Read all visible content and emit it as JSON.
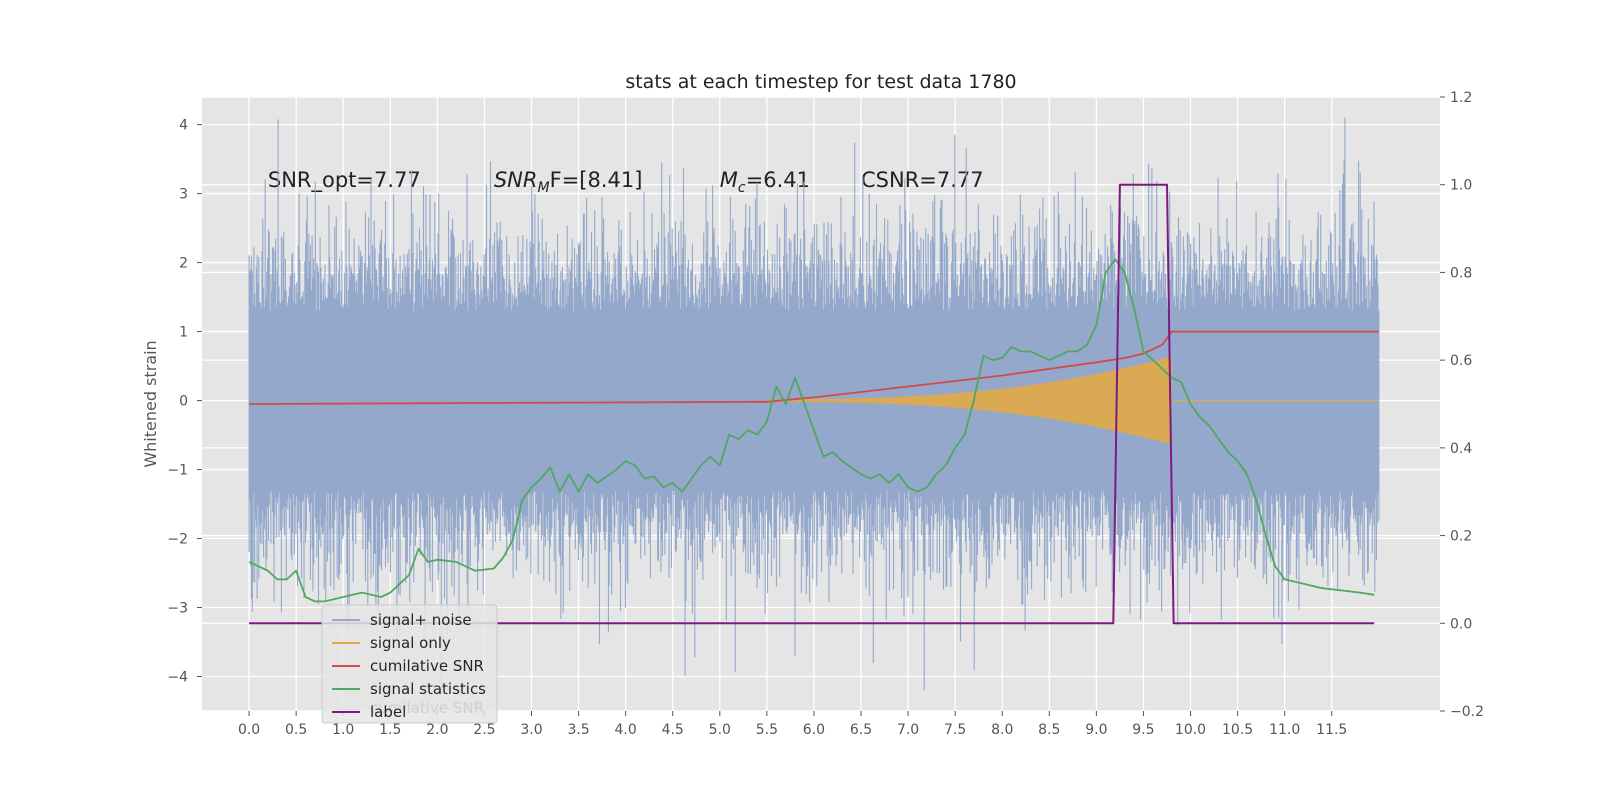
{
  "chart_data": {
    "type": "line",
    "title": "stats at each timestep for test data 1780",
    "ylabel": "Whitened strain",
    "xlabel": "",
    "xlim": [
      -0.5,
      12.65
    ],
    "ylim": [
      -4.5,
      4.4
    ],
    "y2lim": [
      -0.2,
      1.2
    ],
    "grid": true,
    "legend_position": "lower-left",
    "x_ticks": [
      0.0,
      0.5,
      1.0,
      1.5,
      2.0,
      2.5,
      3.0,
      3.5,
      4.0,
      4.5,
      5.0,
      5.5,
      6.0,
      6.5,
      7.0,
      7.5,
      8.0,
      8.5,
      9.0,
      9.5,
      10.0,
      10.5,
      11.0,
      11.5
    ],
    "x_tick_labels": [
      "0.0",
      "0.5",
      "1.0",
      "1.5",
      "2.0",
      "2.5",
      "3.0",
      "3.5",
      "4.0",
      "4.5",
      "5.0",
      "5.5",
      "6.0",
      "6.5",
      "7.0",
      "7.5",
      "8.0",
      "8.5",
      "9.0",
      "9.5",
      "10.0",
      "10.5",
      "11.0",
      "11.5"
    ],
    "y_ticks": [
      -4,
      -3,
      -2,
      -1,
      0,
      1,
      2,
      3,
      4
    ],
    "y_tick_labels": [
      "−4",
      "−3",
      "−2",
      "−1",
      "0",
      "1",
      "2",
      "3",
      "4"
    ],
    "y2_ticks": [
      -0.2,
      0.0,
      0.2,
      0.4,
      0.6,
      0.8,
      1.0,
      1.2
    ],
    "y2_tick_labels": [
      "−0.2",
      "0.0",
      "0.2",
      "0.4",
      "0.6",
      "0.8",
      "1.0",
      "1.2"
    ],
    "annotations": [
      {
        "pre": "SNR_opt=7.77",
        "it": "",
        "sub": "",
        "post": ""
      },
      {
        "pre": "",
        "it": "SNR",
        "sub": "M",
        "post": "F=[8.41]"
      },
      {
        "pre": "",
        "it": "M",
        "sub": "c",
        "post": "=6.41"
      },
      {
        "pre": "CSNR=7.77",
        "it": "",
        "sub": "",
        "post": ""
      }
    ],
    "annotation_x": [
      0.2,
      2.6,
      5.0,
      6.5
    ],
    "annotation_y": 3.2,
    "series": [
      {
        "name": "signal+ noise",
        "color": "#94a8cb",
        "axis": "left",
        "kind": "noise",
        "x_range": [
          0.0,
          12.0
        ],
        "envelope": 1.3,
        "peak": 4.1,
        "trough": -4.2
      },
      {
        "name": "signal only",
        "color": "#e0a94a",
        "axis": "left",
        "kind": "chirp",
        "x_start": 5.5,
        "x_end": 9.8,
        "amplitude_end": 0.62
      },
      {
        "name": "cumilative SNR",
        "color": "#d14b4b",
        "axis": "right",
        "x": [
          0.0,
          5.5,
          6.0,
          7.0,
          8.0,
          8.5,
          9.0,
          9.3,
          9.5,
          9.7,
          9.8,
          12.0
        ],
        "values": [
          0.5,
          0.505,
          0.515,
          0.54,
          0.565,
          0.58,
          0.595,
          0.605,
          0.615,
          0.635,
          0.665,
          0.665
        ]
      },
      {
        "name": "signal statistics",
        "color": "#50a860",
        "axis": "right",
        "x": [
          0.0,
          0.1,
          0.2,
          0.3,
          0.4,
          0.5,
          0.6,
          0.7,
          0.8,
          0.9,
          1.0,
          1.1,
          1.2,
          1.3,
          1.4,
          1.5,
          1.6,
          1.7,
          1.8,
          1.9,
          2.0,
          2.2,
          2.4,
          2.6,
          2.7,
          2.8,
          2.9,
          3.0,
          3.1,
          3.2,
          3.3,
          3.4,
          3.5,
          3.6,
          3.7,
          3.8,
          3.9,
          4.0,
          4.1,
          4.2,
          4.3,
          4.4,
          4.5,
          4.6,
          4.7,
          4.8,
          4.9,
          5.0,
          5.1,
          5.2,
          5.3,
          5.4,
          5.5,
          5.6,
          5.7,
          5.8,
          5.9,
          6.0,
          6.1,
          6.2,
          6.3,
          6.4,
          6.5,
          6.6,
          6.7,
          6.8,
          6.9,
          7.0,
          7.1,
          7.2,
          7.3,
          7.4,
          7.5,
          7.6,
          7.7,
          7.8,
          7.9,
          8.0,
          8.1,
          8.2,
          8.3,
          8.4,
          8.5,
          8.6,
          8.7,
          8.8,
          8.9,
          9.0,
          9.1,
          9.2,
          9.3,
          9.4,
          9.5,
          9.6,
          9.7,
          9.8,
          9.9,
          10.0,
          10.1,
          10.2,
          10.3,
          10.4,
          10.5,
          10.6,
          10.7,
          10.8,
          10.9,
          11.0,
          11.2,
          11.4,
          11.6,
          11.8,
          11.95
        ],
        "values": [
          0.14,
          0.13,
          0.12,
          0.1,
          0.1,
          0.12,
          0.06,
          0.05,
          0.05,
          0.055,
          0.06,
          0.065,
          0.07,
          0.065,
          0.06,
          0.07,
          0.09,
          0.11,
          0.17,
          0.14,
          0.145,
          0.14,
          0.12,
          0.125,
          0.15,
          0.19,
          0.28,
          0.31,
          0.33,
          0.355,
          0.3,
          0.34,
          0.3,
          0.34,
          0.32,
          0.335,
          0.35,
          0.37,
          0.36,
          0.33,
          0.335,
          0.31,
          0.32,
          0.3,
          0.33,
          0.36,
          0.38,
          0.36,
          0.43,
          0.42,
          0.44,
          0.43,
          0.46,
          0.54,
          0.5,
          0.56,
          0.5,
          0.44,
          0.38,
          0.39,
          0.37,
          0.355,
          0.34,
          0.33,
          0.34,
          0.32,
          0.34,
          0.31,
          0.3,
          0.31,
          0.34,
          0.36,
          0.4,
          0.43,
          0.51,
          0.61,
          0.6,
          0.605,
          0.63,
          0.62,
          0.62,
          0.61,
          0.6,
          0.61,
          0.62,
          0.62,
          0.635,
          0.68,
          0.8,
          0.83,
          0.8,
          0.72,
          0.62,
          0.6,
          0.58,
          0.56,
          0.55,
          0.5,
          0.47,
          0.45,
          0.42,
          0.39,
          0.37,
          0.34,
          0.28,
          0.2,
          0.13,
          0.1,
          0.09,
          0.08,
          0.075,
          0.07,
          0.065
        ]
      },
      {
        "name": "label",
        "color": "#7b1a7f",
        "axis": "right",
        "x": [
          0.0,
          9.18,
          9.25,
          9.75,
          9.82,
          11.95
        ],
        "values": [
          0.0,
          0.0,
          1.0,
          1.0,
          0.0,
          0.0
        ]
      }
    ],
    "legend_ghost_text": "cumilative SNR"
  }
}
